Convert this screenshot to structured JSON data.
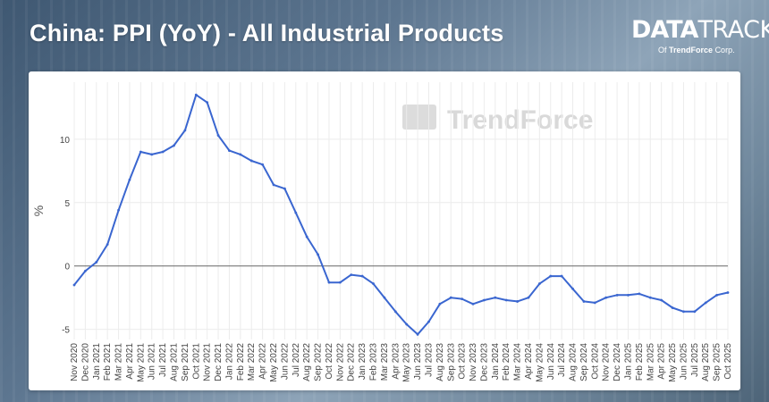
{
  "header": {
    "title": "China: PPI (YoY) - All Industrial Products"
  },
  "logo": {
    "part1": "DATA",
    "part2": "TRACK",
    "sub_prefix": "Of",
    "sub_brand": "TrendForce",
    "sub_suffix": "Corp."
  },
  "watermark": {
    "text": "TrendForce"
  },
  "colors": {
    "line": "#3a66d0",
    "zero_line": "#666666",
    "grid": "#ececec"
  },
  "chart_data": {
    "type": "line",
    "title": "China: PPI (YoY) - All Industrial Products",
    "xlabel": "",
    "ylabel": "%",
    "ylim": [
      -5.8,
      14.5
    ],
    "yticks": [
      -5,
      0,
      5,
      10
    ],
    "grid": true,
    "categories": [
      "Nov 2020",
      "Dec 2020",
      "Jan 2021",
      "Feb 2021",
      "Mar 2021",
      "Apr 2021",
      "May 2021",
      "Jun 2021",
      "Jul 2021",
      "Aug 2021",
      "Sep 2021",
      "Oct 2021",
      "Nov 2021",
      "Dec 2021",
      "Jan 2022",
      "Feb 2022",
      "Mar 2022",
      "Apr 2022",
      "May 2022",
      "Jun 2022",
      "Jul 2022",
      "Aug 2022",
      "Sep 2022",
      "Oct 2022",
      "Nov 2022",
      "Dec 2022",
      "Jan 2023",
      "Feb 2023",
      "Mar 2023",
      "Apr 2023",
      "May 2023",
      "Jun 2023",
      "Jul 2023",
      "Aug 2023",
      "Sep 2023",
      "Oct 2023",
      "Nov 2023",
      "Dec 2023",
      "Jan 2024",
      "Feb 2024",
      "Mar 2024",
      "Apr 2024",
      "May 2024",
      "Jun 2024",
      "Jul 2024",
      "Aug 2024",
      "Sep 2024",
      "Oct 2024",
      "Nov 2024",
      "Dec 2024",
      "Jan 2025",
      "Feb 2025",
      "Mar 2025",
      "Apr 2025",
      "May 2025",
      "Jun 2025",
      "Jul 2025",
      "Aug 2025",
      "Sep 2025",
      "Oct 2025"
    ],
    "values": [
      -1.5,
      -0.4,
      0.3,
      1.7,
      4.4,
      6.8,
      9.0,
      8.8,
      9.0,
      9.5,
      10.7,
      13.5,
      12.9,
      10.3,
      9.1,
      8.8,
      8.3,
      8.0,
      6.4,
      6.1,
      4.2,
      2.3,
      0.9,
      -1.3,
      -1.3,
      -0.7,
      -0.8,
      -1.4,
      -2.5,
      -3.6,
      -4.6,
      -5.4,
      -4.4,
      -3.0,
      -2.5,
      -2.6,
      -3.0,
      -2.7,
      -2.5,
      -2.7,
      -2.8,
      -2.5,
      -1.4,
      -0.8,
      -0.8,
      -1.8,
      -2.8,
      -2.9,
      -2.5,
      -2.3,
      -2.3,
      -2.2,
      -2.5,
      -2.7,
      -3.3,
      -3.6,
      -3.6,
      -2.9,
      -2.3,
      -2.1
    ]
  }
}
